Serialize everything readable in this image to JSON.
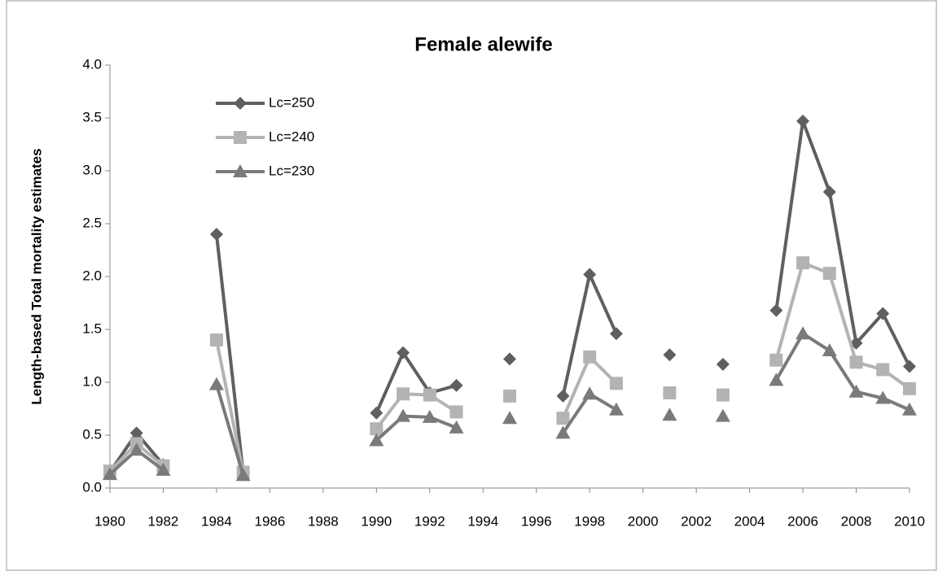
{
  "chart_data": {
    "type": "line",
    "title": "Female alewife",
    "y_label": "Length-based Total mortality estimates",
    "x": [
      1980,
      1981,
      1982,
      1983,
      1984,
      1985,
      1986,
      1987,
      1988,
      1989,
      1990,
      1991,
      1992,
      1993,
      1994,
      1995,
      1996,
      1997,
      1998,
      1999,
      2000,
      2001,
      2002,
      2003,
      2004,
      2005,
      2006,
      2007,
      2008,
      2009,
      2010
    ],
    "xlim": [
      1980,
      2010
    ],
    "xticks": [
      1980,
      1982,
      1984,
      1986,
      1988,
      1990,
      1992,
      1994,
      1996,
      1998,
      2000,
      2002,
      2004,
      2006,
      2008,
      2010
    ],
    "ylim": [
      0,
      4
    ],
    "yticks": [
      {
        "value": 0,
        "label": "0.0"
      },
      0.5,
      {
        "value": 1,
        "label": "1.0"
      },
      1.5,
      {
        "value": 2,
        "label": "2.0"
      },
      2.5,
      {
        "value": 3,
        "label": "3.0"
      },
      3.5,
      {
        "value": 4,
        "label": "4.0"
      }
    ],
    "grid": false,
    "legend": "upper left",
    "series": [
      {
        "name": "Lc=250",
        "color": "#5f5f5f",
        "marker": "diamond",
        "values": [
          0.15,
          0.52,
          0.22,
          null,
          2.4,
          0.14,
          null,
          null,
          null,
          null,
          0.71,
          1.28,
          0.9,
          0.97,
          null,
          1.22,
          null,
          0.87,
          2.02,
          1.46,
          null,
          1.26,
          null,
          1.17,
          null,
          1.68,
          3.47,
          2.8,
          1.37,
          1.65,
          1.15
        ]
      },
      {
        "name": "Lc=240",
        "color": "#b3b3b3",
        "marker": "square",
        "values": [
          0.16,
          0.42,
          0.21,
          null,
          1.4,
          0.15,
          null,
          null,
          null,
          null,
          0.56,
          0.89,
          0.88,
          0.72,
          null,
          0.87,
          null,
          0.66,
          1.24,
          0.99,
          null,
          0.9,
          null,
          0.88,
          null,
          1.21,
          2.13,
          2.03,
          1.19,
          1.12,
          0.94
        ]
      },
      {
        "name": "Lc=230",
        "color": "#7a7a7a",
        "marker": "triangle",
        "values": [
          0.13,
          0.36,
          0.17,
          null,
          0.98,
          0.12,
          null,
          null,
          null,
          null,
          0.45,
          0.68,
          0.67,
          0.57,
          null,
          0.66,
          null,
          0.52,
          0.89,
          0.74,
          null,
          0.69,
          null,
          0.68,
          null,
          1.02,
          1.46,
          1.3,
          0.91,
          0.85,
          0.74
        ]
      }
    ]
  }
}
